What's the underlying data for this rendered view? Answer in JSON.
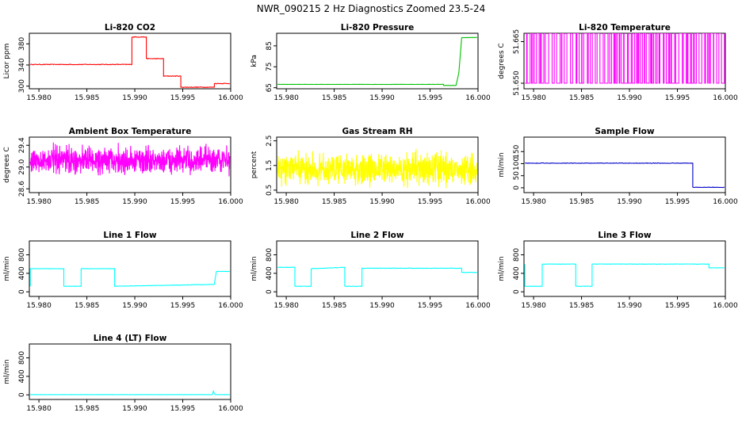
{
  "title": "NWR_090215  2 Hz Diagnostics Zoomed 23.5-24",
  "colors": {
    "red": "#ff0000",
    "green": "#00c000",
    "magenta": "#ff00ff",
    "yellow": "#ffff00",
    "blue": "#0000c8",
    "cyan": "#00ffff"
  },
  "chart_data": [
    {
      "type": "line",
      "title": "Li-820 CO2",
      "ylabel": "Licor ppm",
      "color": "red",
      "xlim": [
        15.979,
        16.0
      ],
      "ylim": [
        295,
        400
      ],
      "yticks": [
        300,
        340,
        380
      ],
      "xticks": [
        "15.980",
        "15.985",
        "15.990",
        "15.995",
        "16.000"
      ],
      "grid": false,
      "noise": 0.6,
      "series": [
        {
          "x": [
            15.9791,
            15.9897,
            15.9897,
            15.9912,
            15.9912,
            15.993,
            15.993,
            15.9948,
            15.9948,
            15.9983,
            15.9983,
            15.9999
          ],
          "y": [
            341,
            341,
            393,
            393,
            352,
            352,
            319,
            319,
            298,
            298,
            305,
            305
          ]
        }
      ]
    },
    {
      "type": "line",
      "title": "Li-820 Pressure",
      "ylabel": "kPa",
      "color": "green",
      "xlim": [
        15.979,
        16.0
      ],
      "ylim": [
        64.5,
        91
      ],
      "yticks": [
        65,
        75,
        85
      ],
      "xticks": [
        "15.980",
        "15.985",
        "15.990",
        "15.995",
        "16.000"
      ],
      "grid": false,
      "noise": 0.05,
      "series": [
        {
          "x": [
            15.9791,
            15.9964,
            15.9964,
            15.9977,
            15.998,
            15.9983,
            15.9999
          ],
          "y": [
            66.6,
            66.6,
            66.1,
            66.1,
            72.0,
            88.9,
            89.0
          ]
        }
      ]
    },
    {
      "type": "line",
      "title": "Li-820 Temperature",
      "ylabel": "degrees C",
      "color": "magenta",
      "xlim": [
        15.979,
        16.0
      ],
      "ylim": [
        51.648,
        51.668
      ],
      "yticks": [
        51.65,
        51.665
      ],
      "ytick_labels": [
        "51.650",
        "51.665"
      ],
      "xticks": [
        "15.980",
        "15.985",
        "15.990",
        "15.995",
        "16.000"
      ],
      "grid": false,
      "toggle": {
        "low": 51.65,
        "high": 51.668
      }
    },
    {
      "type": "line",
      "title": "Ambient Box Temperature",
      "ylabel": "degrees C",
      "color": "magenta",
      "xlim": [
        15.979,
        16.0
      ],
      "ylim": [
        28.53,
        29.55
      ],
      "yticks": [
        28.6,
        29.0,
        29.4
      ],
      "ytick_labels": [
        "28.6",
        "29.0",
        "29.4"
      ],
      "xticks": [
        "15.980",
        "15.985",
        "15.990",
        "15.995",
        "16.000"
      ],
      "grid": false,
      "noisy": {
        "start": 15.9791,
        "end": 15.9999,
        "mean": 29.12,
        "amp": 0.35
      }
    },
    {
      "type": "line",
      "title": "Gas Stream RH",
      "ylabel": "percent",
      "color": "yellow",
      "xlim": [
        15.979,
        16.0
      ],
      "ylim": [
        0.4,
        2.65
      ],
      "yticks": [
        0.5,
        1.5,
        2.5
      ],
      "ytick_labels": [
        "0.5",
        "1.5",
        "2.5"
      ],
      "xticks": [
        "15.980",
        "15.985",
        "15.990",
        "15.995",
        "16.000"
      ],
      "grid": false,
      "noisy": {
        "start": 15.9791,
        "end": 15.9999,
        "mean": 1.35,
        "amp": 0.9
      }
    },
    {
      "type": "line",
      "title": "Sample Flow",
      "ylabel": "ml/min",
      "color": "blue",
      "xlim": [
        15.979,
        16.0
      ],
      "ylim": [
        -20,
        210
      ],
      "yticks": [
        0,
        50,
        100,
        150
      ],
      "xticks": [
        "15.980",
        "15.985",
        "15.990",
        "15.995",
        "16.000"
      ],
      "grid": false,
      "noise": 1.0,
      "series": [
        {
          "x": [
            15.9791,
            15.9966,
            15.9966,
            15.9999
          ],
          "y": [
            102,
            102,
            2,
            2
          ]
        }
      ]
    },
    {
      "type": "line",
      "title": "Line 1 Flow",
      "ylabel": "ml/min",
      "color": "cyan",
      "xlim": [
        15.979,
        16.0
      ],
      "ylim": [
        -100,
        1100
      ],
      "yticks": [
        0,
        400,
        800
      ],
      "xticks": [
        "15.980",
        "15.985",
        "15.990",
        "15.995",
        "16.000"
      ],
      "grid": false,
      "noise": 4,
      "series": [
        {
          "x": [
            15.9791,
            15.9791,
            15.9826,
            15.9826,
            15.9844,
            15.9844,
            15.9879,
            15.9879,
            15.9983,
            15.9985,
            15.9999
          ],
          "y": [
            120,
            500,
            500,
            120,
            120,
            500,
            500,
            120,
            160,
            440,
            440
          ]
        }
      ]
    },
    {
      "type": "line",
      "title": "Line 2 Flow",
      "ylabel": "ml/min",
      "color": "cyan",
      "xlim": [
        15.979,
        16.0
      ],
      "ylim": [
        -100,
        1100
      ],
      "yticks": [
        0,
        400,
        800
      ],
      "xticks": [
        "15.980",
        "15.985",
        "15.990",
        "15.995",
        "16.000"
      ],
      "grid": false,
      "noise": 4,
      "series": [
        {
          "x": [
            15.9791,
            15.9809,
            15.9809,
            15.9826,
            15.9826,
            15.9861,
            15.9861,
            15.9879,
            15.9879,
            15.9983,
            15.9983,
            15.9999
          ],
          "y": [
            530,
            530,
            120,
            120,
            500,
            530,
            120,
            120,
            510,
            510,
            420,
            420
          ]
        }
      ]
    },
    {
      "type": "line",
      "title": "Line 3 Flow",
      "ylabel": "ml/min",
      "color": "cyan",
      "xlim": [
        15.979,
        16.0
      ],
      "ylim": [
        -100,
        1100
      ],
      "yticks": [
        0,
        400,
        800
      ],
      "xticks": [
        "15.980",
        "15.985",
        "15.990",
        "15.995",
        "16.000"
      ],
      "grid": false,
      "noise": 4,
      "series": [
        {
          "x": [
            15.9791,
            15.9791,
            15.9809,
            15.9809,
            15.9844,
            15.9844,
            15.9861,
            15.9861,
            15.9983,
            15.9983,
            15.9999
          ],
          "y": [
            600,
            120,
            120,
            600,
            600,
            120,
            120,
            600,
            600,
            520,
            520
          ]
        }
      ]
    },
    {
      "type": "line",
      "title": "Line 4 (LT) Flow",
      "ylabel": "ml/min",
      "color": "cyan",
      "xlim": [
        15.979,
        16.0
      ],
      "ylim": [
        -100,
        1100
      ],
      "yticks": [
        0,
        400,
        800
      ],
      "xticks": [
        "15.980",
        "15.985",
        "15.990",
        "15.995",
        "16.000"
      ],
      "grid": false,
      "noise": 2,
      "series": [
        {
          "x": [
            15.9791,
            15.9981,
            15.9982,
            15.9983,
            15.9984,
            15.9999
          ],
          "y": [
            5,
            5,
            80,
            30,
            5,
            5
          ]
        }
      ]
    }
  ]
}
